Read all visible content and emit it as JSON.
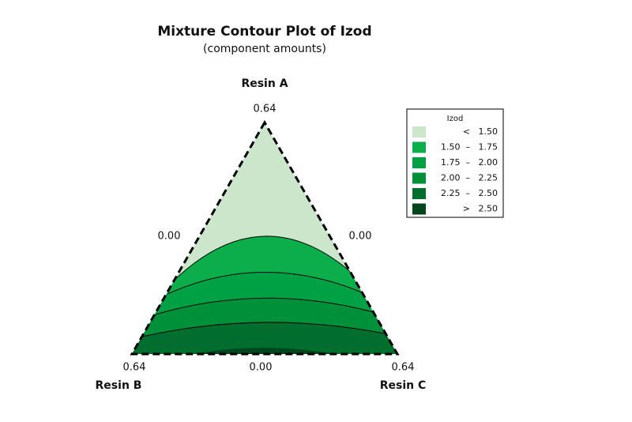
{
  "chart_data": {
    "type": "ternary-contour",
    "title": "Mixture Contour Plot of Izod",
    "subtitle": "(component amounts)",
    "vertices": [
      "Resin A",
      "Resin B",
      "Resin C"
    ],
    "tick_labels": {
      "top": "0.64",
      "left_mid": "0.00",
      "right_mid": "0.00",
      "bottom_left": "0.64",
      "bottom_mid": "0.00",
      "bottom_right": "0.64"
    },
    "legend_title": "Izod",
    "levels": [
      {
        "label": "<   1.50",
        "color": "#cce6cc"
      },
      {
        "label": "1.50  –   1.75",
        "color": "#0cae4c"
      },
      {
        "label": "1.75  –   2.00",
        "color": "#00a045"
      },
      {
        "label": "2.00  –   2.25",
        "color": "#00903a"
      },
      {
        "label": "2.25  –   2.50",
        "color": "#006e2c"
      },
      {
        "label": ">   2.50",
        "color": "#00461c"
      }
    ]
  }
}
